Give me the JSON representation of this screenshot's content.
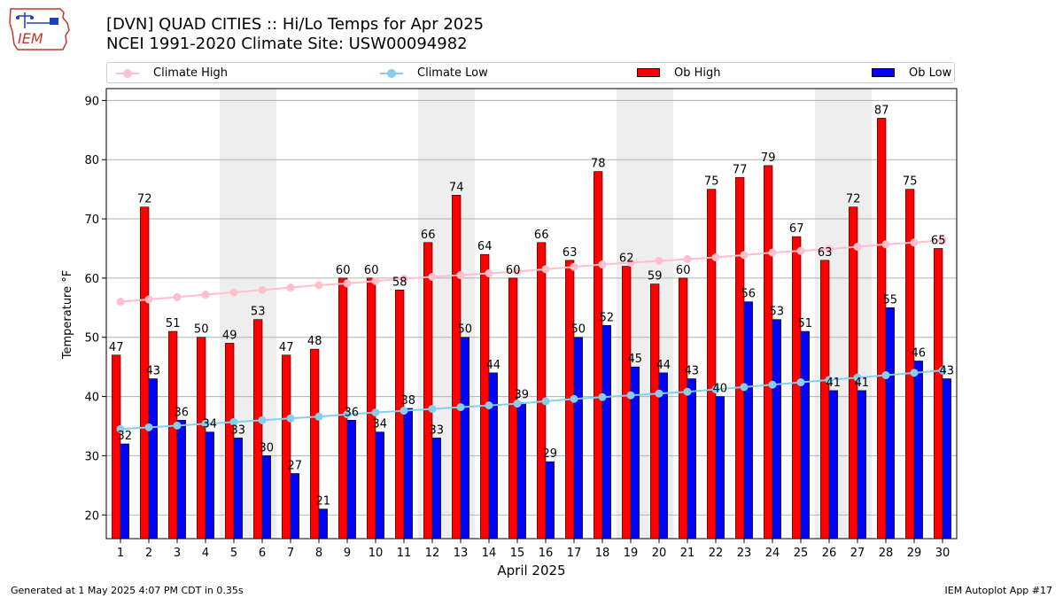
{
  "header": {
    "title_line1": "[DVN] QUAD CITIES :: Hi/Lo Temps for Apr 2025",
    "title_line2": "NCEI 1991-2020 Climate Site: USW00094982"
  },
  "logo": {
    "text": "IEM"
  },
  "footer": {
    "left": "Generated at 1 May 2025 4:07 PM CDT in 0.35s",
    "right": "IEM Autoplot App #17"
  },
  "colors": {
    "climate_high": "#ffc0cb",
    "climate_low": "#87ceeb",
    "ob_high": "#ff0000",
    "ob_low": "#0000ff",
    "weekend_shade": "#eeeeee"
  },
  "chart_data": {
    "type": "bar",
    "xlabel": "April 2025",
    "ylabel": "Temperature °F",
    "ylim": [
      16,
      92
    ],
    "yticks": [
      20,
      30,
      40,
      50,
      60,
      70,
      80,
      90
    ],
    "grid": true,
    "legend_position": "top",
    "categories": [
      "1",
      "2",
      "3",
      "4",
      "5",
      "6",
      "7",
      "8",
      "9",
      "10",
      "11",
      "12",
      "13",
      "14",
      "15",
      "16",
      "17",
      "18",
      "19",
      "20",
      "21",
      "22",
      "23",
      "24",
      "25",
      "26",
      "27",
      "28",
      "29",
      "30"
    ],
    "shaded_days": [
      5,
      6,
      12,
      13,
      19,
      20,
      26,
      27
    ],
    "series": [
      {
        "name": "Ob High",
        "kind": "bar",
        "values": [
          47,
          72,
          51,
          50,
          49,
          53,
          47,
          48,
          60,
          60,
          58,
          66,
          74,
          64,
          60,
          66,
          63,
          78,
          62,
          59,
          60,
          75,
          77,
          79,
          67,
          63,
          72,
          87,
          75,
          65
        ]
      },
      {
        "name": "Ob Low",
        "kind": "bar",
        "values": [
          32,
          43,
          36,
          34,
          33,
          30,
          27,
          21,
          36,
          34,
          38,
          33,
          50,
          44,
          39,
          29,
          50,
          52,
          45,
          44,
          43,
          40,
          56,
          53,
          51,
          41,
          41,
          55,
          46,
          43
        ]
      },
      {
        "name": "Climate High",
        "kind": "line",
        "values": [
          56.0,
          56.4,
          56.8,
          57.2,
          57.6,
          58.0,
          58.4,
          58.8,
          59.1,
          59.5,
          59.9,
          60.2,
          60.5,
          60.8,
          61.1,
          61.5,
          61.9,
          62.3,
          62.6,
          62.9,
          63.2,
          63.5,
          63.9,
          64.3,
          64.6,
          64.9,
          65.3,
          65.7,
          66.0,
          66.4
        ]
      },
      {
        "name": "Climate Low",
        "kind": "line",
        "values": [
          34.5,
          34.8,
          35.1,
          35.4,
          35.7,
          36.0,
          36.3,
          36.6,
          37.0,
          37.3,
          37.6,
          37.9,
          38.2,
          38.5,
          38.8,
          39.2,
          39.6,
          39.9,
          40.2,
          40.5,
          40.8,
          41.2,
          41.6,
          42.0,
          42.4,
          42.8,
          43.2,
          43.6,
          44.0,
          44.4
        ]
      }
    ]
  }
}
